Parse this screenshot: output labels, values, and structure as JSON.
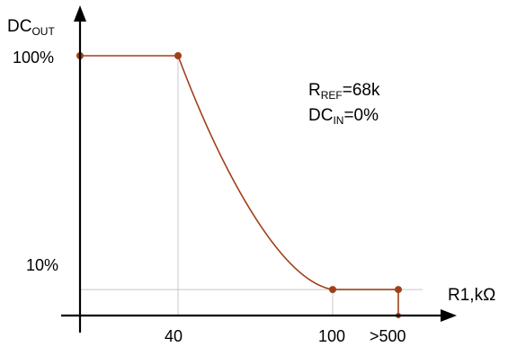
{
  "chart_data": {
    "type": "line",
    "title": "",
    "ylabel": {
      "main": "DC",
      "sub": "OUT"
    },
    "xlabel": "R1,kΩ",
    "x_ticks": [
      "40",
      "100",
      ">500"
    ],
    "y_ticks": [
      "100%",
      "10%"
    ],
    "series": [
      {
        "points": [
          {
            "x": "0",
            "y": 100
          },
          {
            "x": "40",
            "y": 100
          },
          {
            "x": "100",
            "y": 10
          },
          {
            "x": ">500",
            "y": 10
          },
          {
            "x": ">500",
            "y": 0
          }
        ]
      }
    ],
    "annotations": [
      {
        "main": "R",
        "sub": "REF",
        "rest": "=68k"
      },
      {
        "main": "DC",
        "sub": "IN",
        "rest": "=0%"
      }
    ],
    "colors": {
      "curve": "#a0401a",
      "axis": "#000000",
      "grid": "#c8c8c8"
    },
    "grid": true
  }
}
